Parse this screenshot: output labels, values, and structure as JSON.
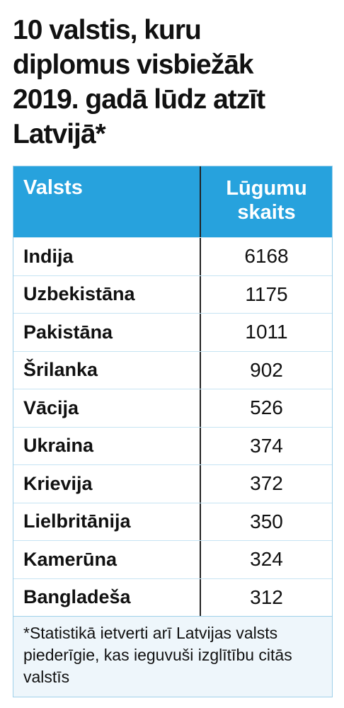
{
  "title": [
    "10 valstis, kuru",
    "diplomus visbiežāk",
    "2019. gadā lūdz atzīt",
    "Latvijā*"
  ],
  "table": {
    "header": [
      "Valsts",
      "Lūgumu skaits"
    ],
    "rows": [
      [
        "Indija",
        6168
      ],
      [
        "Uzbekistāna",
        1175
      ],
      [
        "Pakistāna",
        1011
      ],
      [
        "Šrilanka",
        902
      ],
      [
        "Vācija",
        526
      ],
      [
        "Ukraina",
        374
      ],
      [
        "Krievija",
        372
      ],
      [
        "Lielbritānija",
        350
      ],
      [
        "Kamerūna",
        324
      ],
      [
        "Bangladeša",
        312
      ]
    ]
  },
  "footnote": "*Statistikā ietverti arī Latvijas valsts piederīgie, kas ieguvuši izglītību citās valstīs"
}
